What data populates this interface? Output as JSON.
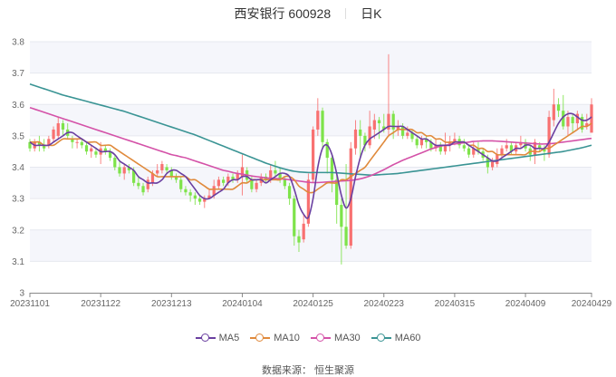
{
  "header": {
    "stock_name": "西安银行 600928",
    "period": "日K"
  },
  "footer": {
    "source_label": "数据来源：",
    "source_value": "恒生聚源"
  },
  "colors": {
    "up": "#f87171",
    "down": "#7ee34a",
    "MA5": "#6a3fa0",
    "MA10": "#e08a3c",
    "MA30": "#d452a8",
    "MA60": "#3a9494",
    "band": "#f5f6fb",
    "grid": "#e6e8ef",
    "axis": "#888888"
  },
  "legend": [
    {
      "key": "MA5",
      "label": "MA5"
    },
    {
      "key": "MA10",
      "label": "MA10"
    },
    {
      "key": "MA30",
      "label": "MA30"
    },
    {
      "key": "MA60",
      "label": "MA60"
    }
  ],
  "chart_data": {
    "type": "candlestick",
    "title": "西安银行 600928 日K",
    "xlabel": "",
    "ylabel": "",
    "ylim": [
      3.0,
      3.8
    ],
    "yticks": [
      3,
      3.1,
      3.2,
      3.3,
      3.4,
      3.5,
      3.6,
      3.7,
      3.8
    ],
    "xticks": [
      "20231101",
      "20231122",
      "20231213",
      "20240104",
      "20240125",
      "20240223",
      "20240315",
      "20240409",
      "20240429"
    ],
    "xtick_index": [
      0,
      15,
      30,
      45,
      60,
      75,
      90,
      105,
      119
    ],
    "grid": true,
    "legend_position": "bottom",
    "ohlc": [
      [
        3.48,
        3.46,
        3.49,
        3.45
      ],
      [
        3.46,
        3.48,
        3.49,
        3.45
      ],
      [
        3.48,
        3.47,
        3.5,
        3.45
      ],
      [
        3.47,
        3.46,
        3.49,
        3.45
      ],
      [
        3.47,
        3.49,
        3.5,
        3.46
      ],
      [
        3.49,
        3.52,
        3.53,
        3.48
      ],
      [
        3.5,
        3.54,
        3.56,
        3.49
      ],
      [
        3.54,
        3.52,
        3.55,
        3.5
      ],
      [
        3.52,
        3.5,
        3.54,
        3.49
      ],
      [
        3.49,
        3.48,
        3.5,
        3.46
      ],
      [
        3.48,
        3.48,
        3.49,
        3.46
      ],
      [
        3.48,
        3.47,
        3.49,
        3.46
      ],
      [
        3.47,
        3.45,
        3.48,
        3.44
      ],
      [
        3.45,
        3.46,
        3.47,
        3.43
      ],
      [
        3.45,
        3.44,
        3.46,
        3.43
      ],
      [
        3.44,
        3.46,
        3.48,
        3.41
      ],
      [
        3.46,
        3.45,
        3.47,
        3.44
      ],
      [
        3.45,
        3.43,
        3.46,
        3.42
      ],
      [
        3.43,
        3.4,
        3.44,
        3.39
      ],
      [
        3.4,
        3.38,
        3.42,
        3.37
      ],
      [
        3.38,
        3.4,
        3.41,
        3.36
      ],
      [
        3.4,
        3.39,
        3.41,
        3.38
      ],
      [
        3.39,
        3.35,
        3.4,
        3.34
      ],
      [
        3.35,
        3.34,
        3.37,
        3.33
      ],
      [
        3.34,
        3.32,
        3.35,
        3.31
      ],
      [
        3.33,
        3.36,
        3.37,
        3.32
      ],
      [
        3.35,
        3.38,
        3.39,
        3.34
      ],
      [
        3.38,
        3.39,
        3.41,
        3.37
      ],
      [
        3.39,
        3.41,
        3.42,
        3.38
      ],
      [
        3.4,
        3.39,
        3.41,
        3.38
      ],
      [
        3.39,
        3.37,
        3.4,
        3.36
      ],
      [
        3.37,
        3.36,
        3.38,
        3.35
      ],
      [
        3.36,
        3.33,
        3.37,
        3.32
      ],
      [
        3.33,
        3.32,
        3.34,
        3.31
      ],
      [
        3.32,
        3.31,
        3.33,
        3.29
      ],
      [
        3.31,
        3.3,
        3.32,
        3.28
      ],
      [
        3.3,
        3.29,
        3.31,
        3.28
      ],
      [
        3.29,
        3.3,
        3.31,
        3.27
      ],
      [
        3.3,
        3.31,
        3.33,
        3.3
      ],
      [
        3.31,
        3.34,
        3.36,
        3.3
      ],
      [
        3.34,
        3.36,
        3.37,
        3.33
      ],
      [
        3.36,
        3.35,
        3.37,
        3.34
      ],
      [
        3.35,
        3.37,
        3.38,
        3.34
      ],
      [
        3.37,
        3.36,
        3.38,
        3.35
      ],
      [
        3.36,
        3.38,
        3.39,
        3.35
      ],
      [
        3.37,
        3.4,
        3.44,
        3.31
      ],
      [
        3.39,
        3.36,
        3.4,
        3.35
      ],
      [
        3.36,
        3.33,
        3.37,
        3.32
      ],
      [
        3.33,
        3.35,
        3.36,
        3.32
      ],
      [
        3.35,
        3.37,
        3.38,
        3.34
      ],
      [
        3.37,
        3.36,
        3.38,
        3.35
      ],
      [
        3.36,
        3.39,
        3.41,
        3.35
      ],
      [
        3.39,
        3.38,
        3.42,
        3.37
      ],
      [
        3.38,
        3.36,
        3.4,
        3.35
      ],
      [
        3.36,
        3.34,
        3.37,
        3.33
      ],
      [
        3.34,
        3.3,
        3.35,
        3.28
      ],
      [
        3.3,
        3.18,
        3.31,
        3.15
      ],
      [
        3.18,
        3.16,
        3.2,
        3.13
      ],
      [
        3.17,
        3.22,
        3.25,
        3.16
      ],
      [
        3.22,
        3.36,
        3.38,
        3.21
      ],
      [
        3.36,
        3.52,
        3.53,
        3.35
      ],
      [
        3.52,
        3.58,
        3.62,
        3.5
      ],
      [
        3.58,
        3.48,
        3.59,
        3.46
      ],
      [
        3.48,
        3.43,
        3.49,
        3.38
      ],
      [
        3.43,
        3.36,
        3.44,
        3.32
      ],
      [
        3.36,
        3.28,
        3.38,
        3.22
      ],
      [
        3.28,
        3.21,
        3.3,
        3.09
      ],
      [
        3.21,
        3.15,
        3.41,
        3.14
      ],
      [
        3.15,
        3.46,
        3.48,
        3.14
      ],
      [
        3.46,
        3.52,
        3.55,
        3.44
      ],
      [
        3.52,
        3.5,
        3.55,
        3.43
      ],
      [
        3.5,
        3.47,
        3.51,
        3.45
      ],
      [
        3.47,
        3.53,
        3.58,
        3.46
      ],
      [
        3.52,
        3.55,
        3.57,
        3.49
      ],
      [
        3.55,
        3.54,
        3.56,
        3.49
      ],
      [
        3.53,
        3.52,
        3.57,
        3.51
      ],
      [
        3.52,
        3.57,
        3.76,
        3.5
      ],
      [
        3.57,
        3.52,
        3.58,
        3.49
      ],
      [
        3.52,
        3.53,
        3.55,
        3.5
      ],
      [
        3.53,
        3.5,
        3.54,
        3.49
      ],
      [
        3.5,
        3.51,
        3.53,
        3.49
      ],
      [
        3.51,
        3.49,
        3.52,
        3.48
      ],
      [
        3.49,
        3.47,
        3.5,
        3.46
      ],
      [
        3.47,
        3.49,
        3.5,
        3.46
      ],
      [
        3.49,
        3.48,
        3.5,
        3.46
      ],
      [
        3.48,
        3.46,
        3.49,
        3.45
      ],
      [
        3.46,
        3.47,
        3.49,
        3.45
      ],
      [
        3.47,
        3.45,
        3.48,
        3.44
      ],
      [
        3.45,
        3.47,
        3.51,
        3.44
      ],
      [
        3.47,
        3.48,
        3.5,
        3.45
      ],
      [
        3.48,
        3.49,
        3.51,
        3.47
      ],
      [
        3.49,
        3.47,
        3.5,
        3.46
      ],
      [
        3.47,
        3.46,
        3.49,
        3.45
      ],
      [
        3.46,
        3.44,
        3.47,
        3.43
      ],
      [
        3.44,
        3.46,
        3.48,
        3.43
      ],
      [
        3.46,
        3.45,
        3.48,
        3.44
      ],
      [
        3.45,
        3.43,
        3.46,
        3.42
      ],
      [
        3.43,
        3.4,
        3.44,
        3.38
      ],
      [
        3.4,
        3.42,
        3.43,
        3.39
      ],
      [
        3.41,
        3.44,
        3.46,
        3.4
      ],
      [
        3.44,
        3.46,
        3.47,
        3.43
      ],
      [
        3.46,
        3.47,
        3.49,
        3.45
      ],
      [
        3.47,
        3.45,
        3.48,
        3.44
      ],
      [
        3.45,
        3.47,
        3.48,
        3.44
      ],
      [
        3.47,
        3.48,
        3.5,
        3.46
      ],
      [
        3.48,
        3.46,
        3.49,
        3.45
      ],
      [
        3.46,
        3.44,
        3.47,
        3.42
      ],
      [
        3.44,
        3.48,
        3.49,
        3.41
      ],
      [
        3.47,
        3.46,
        3.48,
        3.45
      ],
      [
        3.46,
        3.45,
        3.47,
        3.42
      ],
      [
        3.44,
        3.56,
        3.58,
        3.43
      ],
      [
        3.55,
        3.6,
        3.65,
        3.53
      ],
      [
        3.6,
        3.58,
        3.62,
        3.56
      ],
      [
        3.58,
        3.53,
        3.63,
        3.52
      ],
      [
        3.53,
        3.56,
        3.58,
        3.5
      ],
      [
        3.56,
        3.54,
        3.57,
        3.51
      ],
      [
        3.54,
        3.57,
        3.58,
        3.52
      ],
      [
        3.56,
        3.52,
        3.57,
        3.51
      ],
      [
        3.53,
        3.54,
        3.57,
        3.52
      ],
      [
        3.51,
        3.6,
        3.62,
        3.52
      ]
    ],
    "series": [
      {
        "name": "MA5",
        "values": [
          3.48,
          3.47,
          3.47,
          3.47,
          3.47,
          3.48,
          3.49,
          3.5,
          3.51,
          3.51,
          3.5,
          3.49,
          3.48,
          3.47,
          3.46,
          3.45,
          3.45,
          3.45,
          3.44,
          3.42,
          3.41,
          3.4,
          3.39,
          3.37,
          3.36,
          3.35,
          3.35,
          3.35,
          3.36,
          3.38,
          3.39,
          3.39,
          3.38,
          3.37,
          3.35,
          3.33,
          3.31,
          3.3,
          3.3,
          3.31,
          3.32,
          3.33,
          3.35,
          3.36,
          3.36,
          3.37,
          3.37,
          3.36,
          3.36,
          3.36,
          3.35,
          3.36,
          3.37,
          3.38,
          3.38,
          3.37,
          3.33,
          3.28,
          3.25,
          3.24,
          3.3,
          3.4,
          3.46,
          3.47,
          3.44,
          3.38,
          3.31,
          3.27,
          3.3,
          3.37,
          3.43,
          3.47,
          3.49,
          3.5,
          3.51,
          3.52,
          3.53,
          3.53,
          3.53,
          3.53,
          3.52,
          3.51,
          3.5,
          3.49,
          3.49,
          3.48,
          3.47,
          3.47,
          3.47,
          3.47,
          3.48,
          3.48,
          3.48,
          3.47,
          3.46,
          3.45,
          3.44,
          3.43,
          3.42,
          3.42,
          3.43,
          3.44,
          3.45,
          3.46,
          3.46,
          3.47,
          3.47,
          3.46,
          3.46,
          3.46,
          3.48,
          3.51,
          3.54,
          3.56,
          3.57,
          3.57,
          3.56,
          3.55,
          3.55,
          3.56
        ]
      },
      {
        "name": "MA10",
        "values": [
          3.48,
          3.48,
          3.48,
          3.47,
          3.47,
          3.47,
          3.48,
          3.49,
          3.49,
          3.49,
          3.49,
          3.49,
          3.48,
          3.48,
          3.48,
          3.47,
          3.47,
          3.47,
          3.46,
          3.45,
          3.44,
          3.43,
          3.42,
          3.41,
          3.4,
          3.39,
          3.38,
          3.37,
          3.37,
          3.37,
          3.37,
          3.37,
          3.37,
          3.37,
          3.36,
          3.36,
          3.35,
          3.34,
          3.33,
          3.33,
          3.33,
          3.33,
          3.33,
          3.33,
          3.34,
          3.35,
          3.35,
          3.36,
          3.36,
          3.36,
          3.36,
          3.36,
          3.36,
          3.36,
          3.37,
          3.37,
          3.36,
          3.34,
          3.33,
          3.32,
          3.32,
          3.33,
          3.34,
          3.35,
          3.35,
          3.35,
          3.36,
          3.36,
          3.37,
          3.38,
          3.39,
          3.4,
          3.42,
          3.44,
          3.46,
          3.48,
          3.5,
          3.51,
          3.52,
          3.52,
          3.52,
          3.52,
          3.51,
          3.51,
          3.5,
          3.5,
          3.49,
          3.49,
          3.48,
          3.48,
          3.48,
          3.48,
          3.48,
          3.47,
          3.47,
          3.46,
          3.46,
          3.45,
          3.45,
          3.44,
          3.44,
          3.44,
          3.44,
          3.44,
          3.44,
          3.44,
          3.45,
          3.45,
          3.45,
          3.46,
          3.46,
          3.47,
          3.48,
          3.49,
          3.5,
          3.51,
          3.52,
          3.53,
          3.53,
          3.54
        ]
      },
      {
        "name": "MA30",
        "values": [
          3.59,
          3.585,
          3.58,
          3.575,
          3.57,
          3.565,
          3.56,
          3.555,
          3.55,
          3.545,
          3.54,
          3.535,
          3.53,
          3.525,
          3.52,
          3.515,
          3.51,
          3.505,
          3.5,
          3.495,
          3.49,
          3.485,
          3.48,
          3.475,
          3.47,
          3.465,
          3.46,
          3.455,
          3.45,
          3.445,
          3.44,
          3.437,
          3.433,
          3.43,
          3.425,
          3.42,
          3.415,
          3.41,
          3.405,
          3.4,
          3.395,
          3.39,
          3.387,
          3.383,
          3.38,
          3.378,
          3.375,
          3.372,
          3.37,
          3.368,
          3.366,
          3.365,
          3.364,
          3.363,
          3.362,
          3.36,
          3.358,
          3.356,
          3.354,
          3.352,
          3.351,
          3.351,
          3.352,
          3.353,
          3.354,
          3.355,
          3.356,
          3.357,
          3.358,
          3.36,
          3.363,
          3.367,
          3.372,
          3.378,
          3.385,
          3.392,
          3.4,
          3.408,
          3.415,
          3.422,
          3.428,
          3.434,
          3.44,
          3.446,
          3.452,
          3.458,
          3.463,
          3.467,
          3.47,
          3.472,
          3.474,
          3.476,
          3.478,
          3.48,
          3.482,
          3.483,
          3.484,
          3.484,
          3.484,
          3.483,
          3.482,
          3.481,
          3.48,
          3.479,
          3.478,
          3.477,
          3.476,
          3.475,
          3.474,
          3.474,
          3.475,
          3.476,
          3.478,
          3.48,
          3.482,
          3.484,
          3.486,
          3.488,
          3.49,
          3.492
        ]
      },
      {
        "name": "MA60",
        "values": [
          3.665,
          3.66,
          3.655,
          3.65,
          3.645,
          3.64,
          3.635,
          3.63,
          3.626,
          3.622,
          3.618,
          3.614,
          3.61,
          3.606,
          3.602,
          3.598,
          3.594,
          3.59,
          3.586,
          3.582,
          3.578,
          3.573,
          3.568,
          3.563,
          3.558,
          3.553,
          3.548,
          3.543,
          3.538,
          3.533,
          3.528,
          3.523,
          3.518,
          3.513,
          3.508,
          3.503,
          3.497,
          3.491,
          3.485,
          3.479,
          3.473,
          3.467,
          3.461,
          3.455,
          3.449,
          3.443,
          3.437,
          3.431,
          3.425,
          3.419,
          3.413,
          3.408,
          3.403,
          3.398,
          3.394,
          3.39,
          3.387,
          3.385,
          3.384,
          3.383,
          3.383,
          3.383,
          3.383,
          3.383,
          3.383,
          3.382,
          3.381,
          3.38,
          3.379,
          3.378,
          3.377,
          3.376,
          3.375,
          3.375,
          3.376,
          3.377,
          3.378,
          3.379,
          3.38,
          3.382,
          3.384,
          3.386,
          3.388,
          3.39,
          3.392,
          3.394,
          3.396,
          3.398,
          3.4,
          3.402,
          3.404,
          3.406,
          3.408,
          3.41,
          3.412,
          3.414,
          3.416,
          3.418,
          3.42,
          3.422,
          3.424,
          3.426,
          3.428,
          3.43,
          3.432,
          3.434,
          3.436,
          3.438,
          3.44,
          3.442,
          3.444,
          3.446,
          3.448,
          3.45,
          3.453,
          3.456,
          3.459,
          3.462,
          3.466,
          3.47
        ]
      }
    ]
  }
}
